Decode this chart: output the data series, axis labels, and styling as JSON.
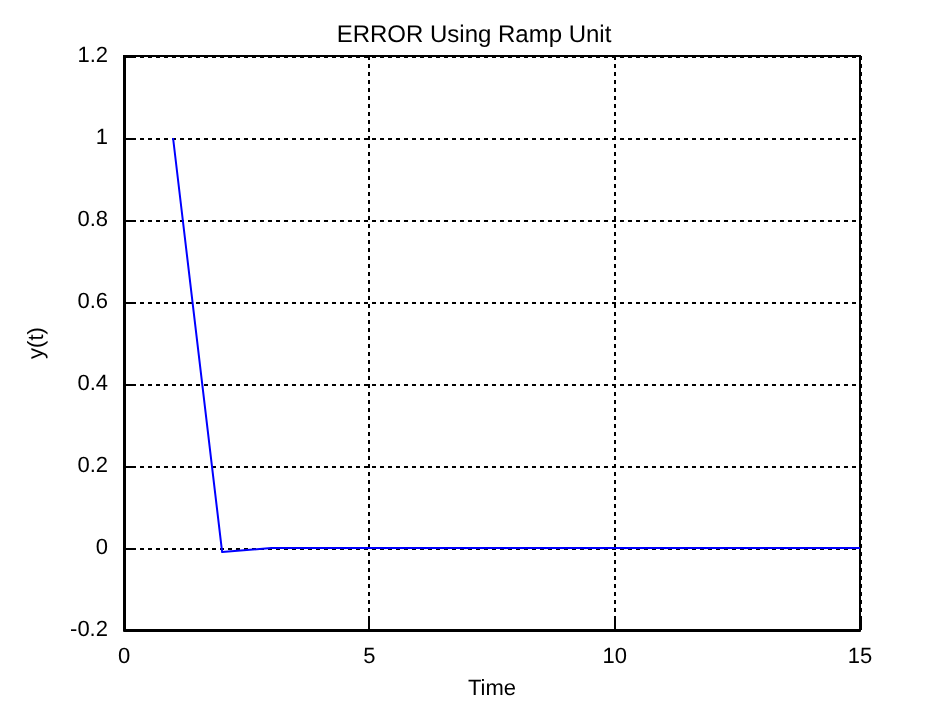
{
  "chart_data": {
    "type": "line",
    "title": "ERROR Using Ramp Unit",
    "xlabel": "Time",
    "ylabel": "y(t)",
    "series": [
      {
        "color": "#0000ff",
        "x": [
          1,
          2,
          3,
          4,
          15
        ],
        "values": [
          1,
          -0.01,
          0,
          0,
          0
        ]
      }
    ],
    "xlim": [
      0,
      15
    ],
    "xticks": [
      0,
      5,
      10,
      15
    ],
    "ylim": [
      -0.2,
      1.2
    ],
    "yticks": [
      -0.2,
      0,
      0.2,
      0.4,
      0.6,
      0.8,
      1,
      1.2
    ],
    "grid": true,
    "line_style": "solid",
    "marker": "none"
  }
}
